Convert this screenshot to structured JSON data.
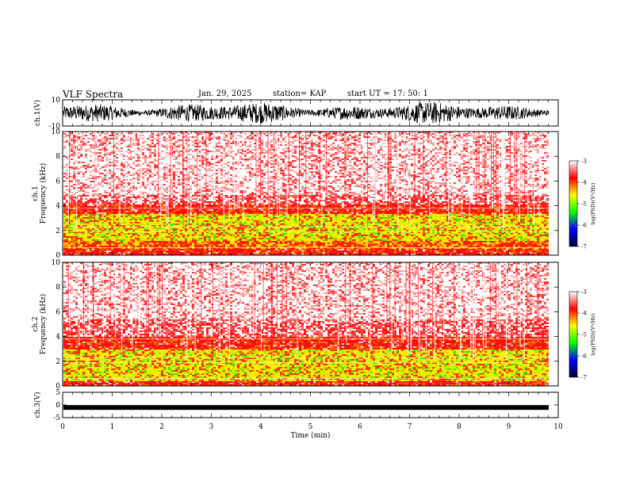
{
  "header": {
    "title": "VLF Spectra",
    "date": "Jan. 29, 2025",
    "station": "station= KAP",
    "start": "start UT =  17: 50: 1"
  },
  "chart_data": [
    {
      "type": "line",
      "panel": "ch1-waveform",
      "ylabel": "ch.1(V)",
      "ylim": [
        -10,
        10
      ],
      "yticks": [
        "10",
        "-10"
      ],
      "xlim": [
        0,
        10
      ],
      "data_extent_min": [
        0,
        9.8
      ],
      "description_of_series": "dense noisy waveform filling approx -8 to 8 V"
    },
    {
      "type": "heatmap",
      "panel": "ch1-spectrogram",
      "ylabel": "ch.1\nFrequency  (kHz)",
      "ylim": [
        0,
        10
      ],
      "yticks": [
        "0",
        "2",
        "4",
        "6",
        "8",
        "10"
      ],
      "xlim": [
        0,
        10
      ],
      "colorbar": {
        "label": "log(PSD)(V²/Hz)",
        "range": [
          -7,
          -3
        ],
        "ticks": [
          "-3",
          "-4",
          "-5",
          "-6",
          "-7"
        ],
        "colors": [
          "#000033",
          "#0000ff",
          "#00ff00",
          "#ffff00",
          "#ff0000",
          "#ffffff"
        ]
      },
      "intensity_profile_kHz": [
        {
          "f": [
            0.0,
            0.6
          ],
          "level": "red"
        },
        {
          "f": [
            0.6,
            1.2
          ],
          "level": "yellow-red"
        },
        {
          "f": [
            1.2,
            3.4
          ],
          "level": "yellow"
        },
        {
          "f": [
            3.4,
            4.2
          ],
          "level": "red"
        },
        {
          "f": [
            4.2,
            5.0
          ],
          "level": "red-light"
        },
        {
          "f": [
            5.0,
            10.0
          ],
          "level": "light"
        }
      ]
    },
    {
      "type": "heatmap",
      "panel": "ch2-spectrogram",
      "ylabel": "ch.2\nFrequency  (kHz)",
      "ylim": [
        0,
        10
      ],
      "yticks": [
        "0",
        "2",
        "4",
        "6",
        "8",
        "10"
      ],
      "xlim": [
        0,
        10
      ],
      "colorbar": {
        "label": "log(PSD)(V²/Hz)",
        "range": [
          -7,
          -3
        ],
        "ticks": [
          "-3",
          "-4",
          "-5",
          "-6",
          "-7"
        ],
        "colors": [
          "#000033",
          "#0000ff",
          "#00ff00",
          "#ffff00",
          "#ff0000",
          "#ffffff"
        ]
      },
      "intensity_profile_kHz": [
        {
          "f": [
            0.0,
            0.5
          ],
          "level": "red"
        },
        {
          "f": [
            0.5,
            3.0
          ],
          "level": "yellow"
        },
        {
          "f": [
            3.0,
            4.0
          ],
          "level": "red"
        },
        {
          "f": [
            4.0,
            5.5
          ],
          "level": "red-light"
        },
        {
          "f": [
            5.5,
            10.0
          ],
          "level": "light"
        }
      ]
    },
    {
      "type": "line",
      "panel": "ch3-waveform",
      "ylabel": "ch.3(V)",
      "ylim": [
        -5,
        5
      ],
      "yticks": [
        "5",
        "0",
        "-5"
      ],
      "xlim": [
        0,
        10
      ],
      "level": -1,
      "xlabel": "Time  (min)",
      "xticks": [
        "0",
        "1",
        "2",
        "3",
        "4",
        "5",
        "6",
        "7",
        "8",
        "9",
        "10"
      ]
    }
  ]
}
